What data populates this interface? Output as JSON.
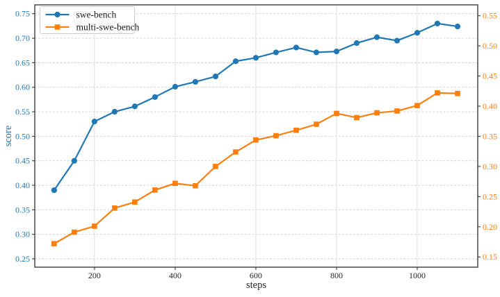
{
  "chart_data": {
    "type": "line",
    "title": "",
    "xlabel": "steps",
    "ylabel": "score",
    "grid": true,
    "legend_position": "upper left",
    "x": [
      100,
      150,
      200,
      250,
      300,
      350,
      400,
      450,
      500,
      550,
      600,
      650,
      700,
      750,
      800,
      850,
      900,
      950,
      1000,
      1050,
      1100
    ],
    "series": [
      {
        "name": "swe-bench",
        "axis": "left",
        "color": "#1f77b4",
        "marker": "circle",
        "values": [
          0.39,
          0.45,
          0.53,
          0.55,
          0.561,
          0.58,
          0.601,
          0.611,
          0.622,
          0.653,
          0.66,
          0.671,
          0.681,
          0.671,
          0.673,
          0.69,
          0.702,
          0.695,
          0.711,
          0.73,
          0.724
        ]
      },
      {
        "name": "multi-swe-bench",
        "axis": "right",
        "color": "#ff7f0e",
        "marker": "square",
        "values": [
          0.172,
          0.191,
          0.201,
          0.231,
          0.241,
          0.261,
          0.272,
          0.268,
          0.3,
          0.324,
          0.344,
          0.351,
          0.36,
          0.37,
          0.388,
          0.381,
          0.389,
          0.392,
          0.401,
          0.422,
          0.421
        ]
      }
    ],
    "x_axis": {
      "label": "steps",
      "ticks": [
        200,
        400,
        600,
        800,
        1000
      ],
      "lim": [
        52,
        1150
      ],
      "tick_color": "#262626"
    },
    "left_axis": {
      "label": "score",
      "ticks": [
        0.25,
        0.3,
        0.35,
        0.4,
        0.45,
        0.5,
        0.55,
        0.6,
        0.65,
        0.7,
        0.75
      ],
      "lim": [
        0.233,
        0.768
      ],
      "color": "#1f77b4"
    },
    "right_axis": {
      "ticks": [
        0.15,
        0.2,
        0.25,
        0.3,
        0.35,
        0.4,
        0.45,
        0.5,
        0.55
      ],
      "lim": [
        0.133,
        0.568
      ],
      "color": "#ff7f0e"
    },
    "style": {
      "spine_color": "#3c3c3c",
      "grid_color": "#cfcfcf",
      "vgrid_color": "#dcdcdc",
      "legend_border": "#cccccc",
      "legend_bg": "#ffffff"
    }
  }
}
